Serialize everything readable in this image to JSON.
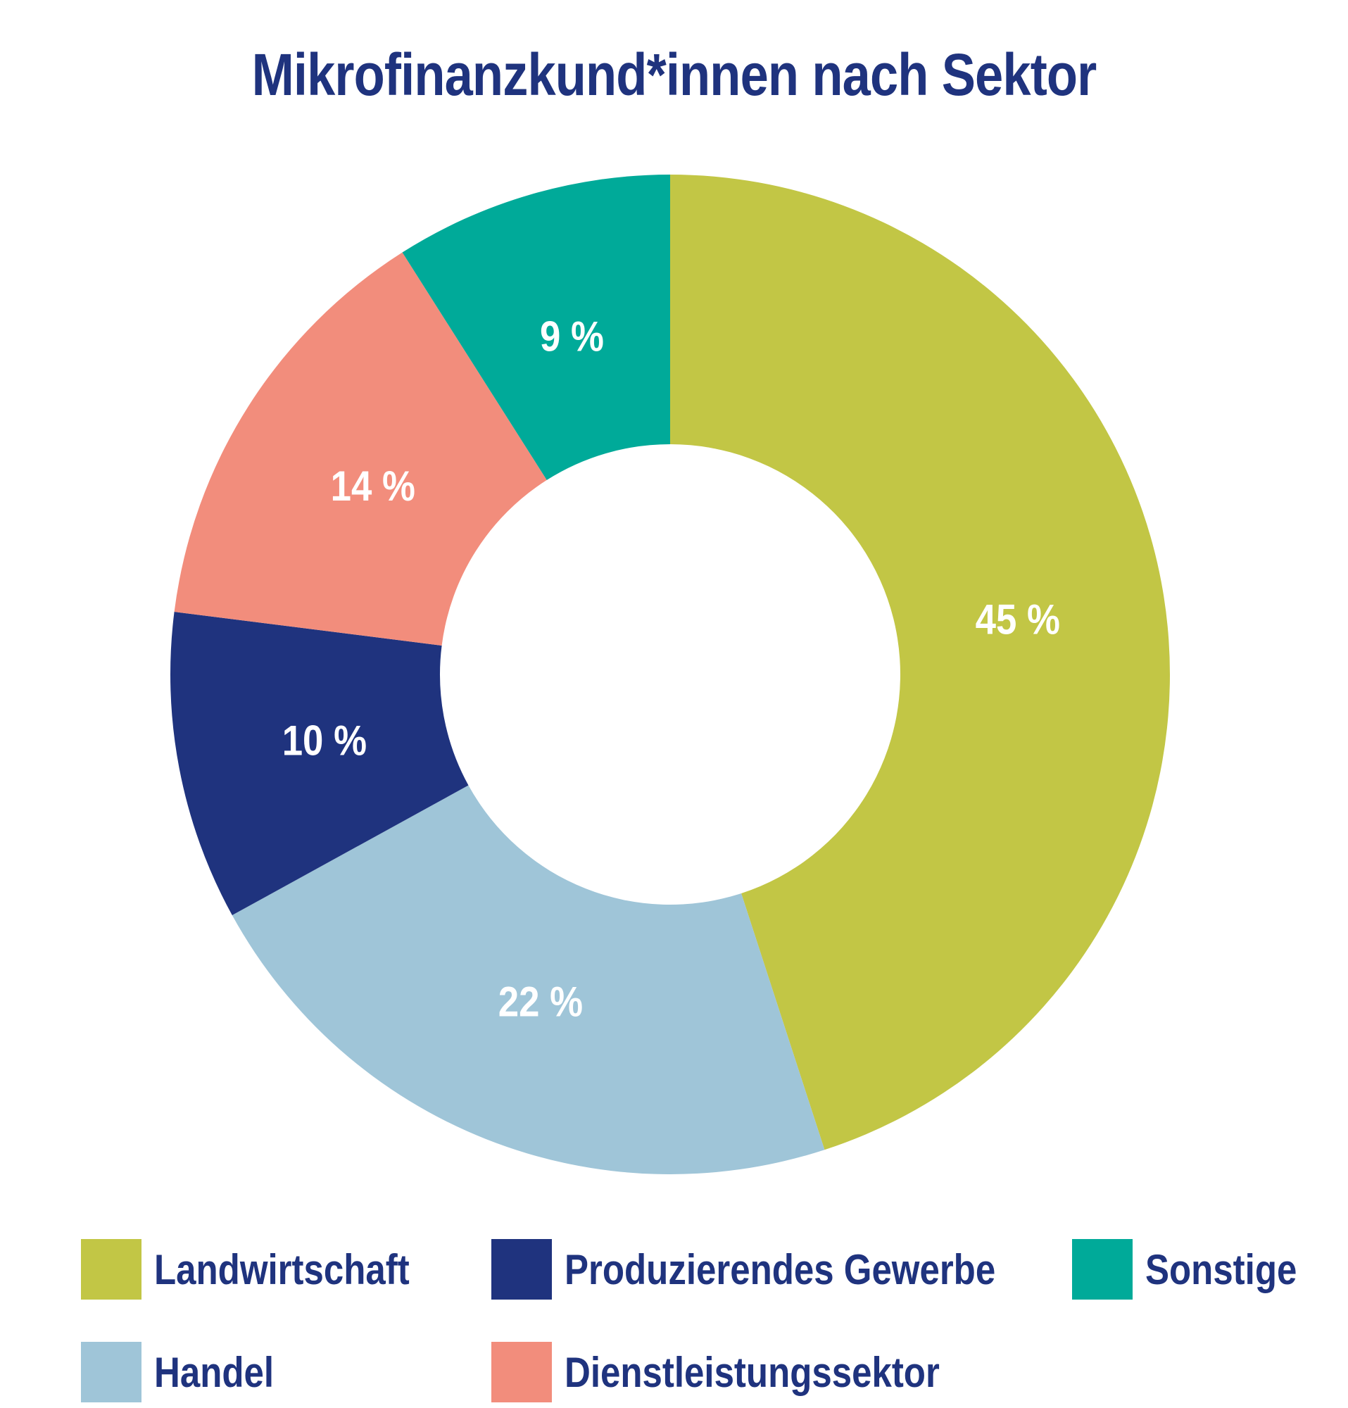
{
  "chart_data": {
    "type": "pie",
    "donut": true,
    "title": "Mikrofinanzkund*innen nach Sektor",
    "slices": [
      {
        "name": "Landwirtschaft",
        "value": 45,
        "label": "45 %",
        "color": "#C2C645"
      },
      {
        "name": "Handel",
        "value": 22,
        "label": "22 %",
        "color": "#9FC5D8"
      },
      {
        "name": "Produzierendes Gewerbe",
        "value": 10,
        "label": "10 %",
        "color": "#1F337E"
      },
      {
        "name": "Dienstleistungssektor",
        "value": 14,
        "label": "14 %",
        "color": "#F28D7C"
      },
      {
        "name": "Sonstige",
        "value": 9,
        "label": "9 %",
        "color": "#00AA99"
      }
    ],
    "legend": {
      "placement": "bottom",
      "entries": [
        "Landwirtschaft",
        "Produzierendes Gewerbe",
        "Sonstige",
        "Handel",
        "Dienstleistungssektor"
      ]
    }
  },
  "colors": {
    "title": "#1F337E",
    "legend_text": "#1F337E",
    "slice_label": "#FFFFFF"
  }
}
